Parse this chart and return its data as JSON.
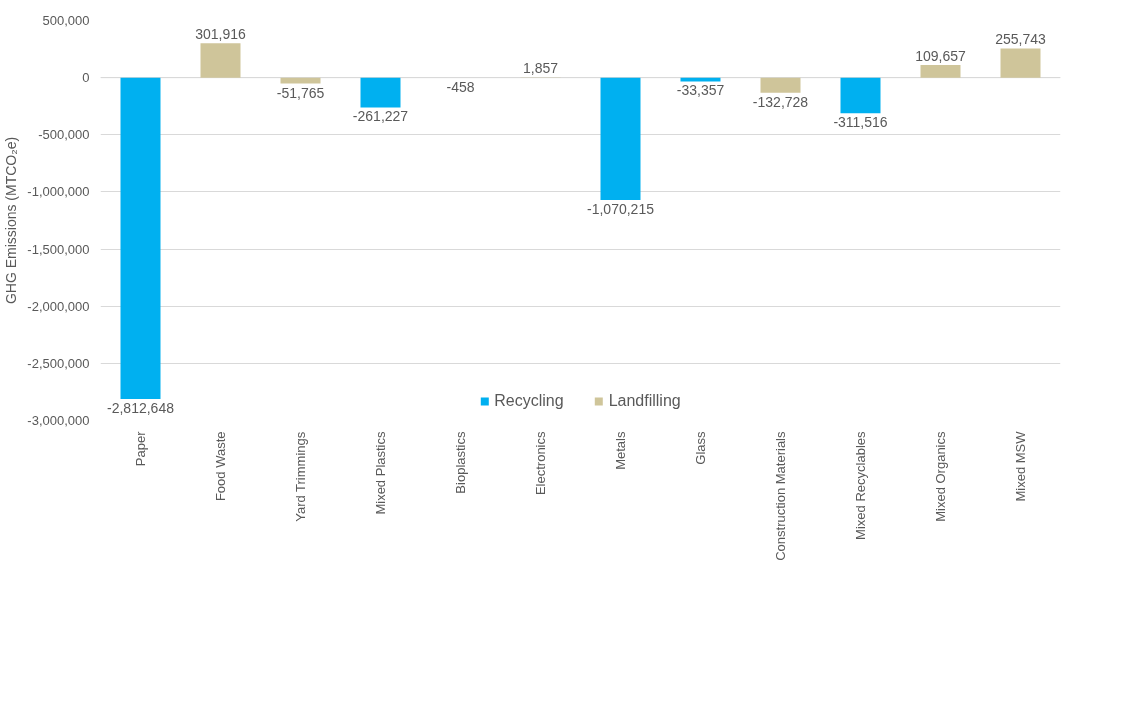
{
  "chart_data": {
    "type": "bar",
    "ylabel": "GHG Emissions (MTCO₂e)",
    "categories": [
      "Paper",
      "Food Waste",
      "Yard Trimmings",
      "Mixed Plastics",
      "Bioplastics",
      "Electronics",
      "Metals",
      "Glass",
      "Construction Materials",
      "Mixed Recyclables",
      "Mixed Organics",
      "Mixed MSW"
    ],
    "series": [
      {
        "name": "Recycling",
        "color": "#00b0f0",
        "values": [
          -2812648,
          null,
          null,
          -261227,
          null,
          null,
          -1070215,
          -33357,
          null,
          -311516,
          null,
          null
        ],
        "value_labels": [
          "-2,812,648",
          null,
          null,
          "-261,227",
          null,
          null,
          "-1,070,215",
          "-33,357",
          null,
          "-311,516",
          null,
          null
        ]
      },
      {
        "name": "Landfilling",
        "color": "#cfc59a",
        "values": [
          null,
          301916,
          -51765,
          null,
          -458,
          1857,
          null,
          null,
          -132728,
          null,
          109657,
          255743
        ],
        "value_labels": [
          null,
          "301,916",
          "-51,765",
          null,
          "-458",
          "1,857",
          null,
          null,
          "-132,728",
          null,
          "109,657",
          "255,743"
        ]
      }
    ],
    "ylim": [
      -3000000,
      500000
    ],
    "yticks": [
      {
        "value": 500000,
        "label": "500,000"
      },
      0,
      {
        "value": -500000,
        "label": "-500,000"
      },
      {
        "value": -1000000,
        "label": "-1,000,000"
      },
      {
        "value": -1500000,
        "label": "-1,500,000"
      },
      {
        "value": -2000000,
        "label": "-2,000,000"
      },
      {
        "value": -2500000,
        "label": "-2,500,000"
      },
      {
        "value": -3000000,
        "label": "-3,000,000"
      }
    ],
    "grid": "y",
    "legend": "bottom",
    "data_labels": true
  }
}
